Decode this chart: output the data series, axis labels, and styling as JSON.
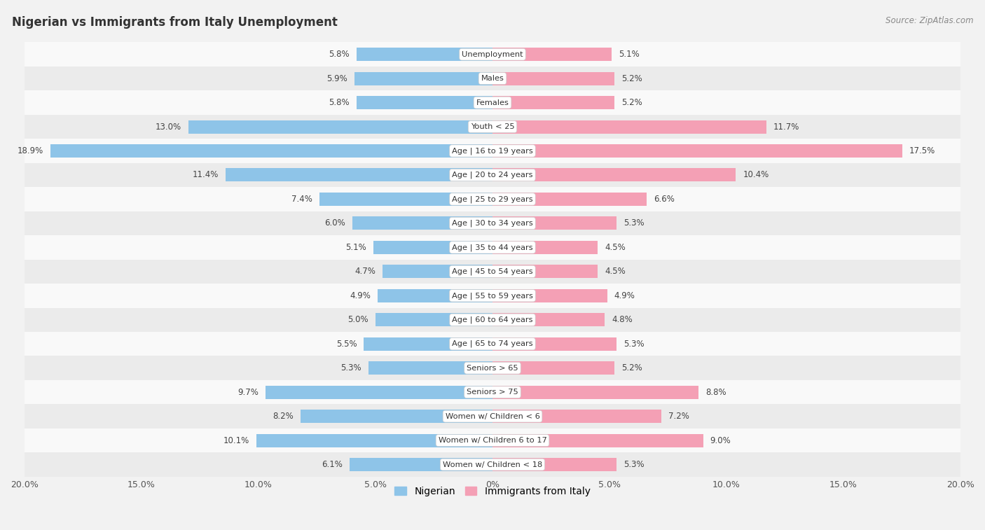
{
  "title": "Nigerian vs Immigrants from Italy Unemployment",
  "source": "Source: ZipAtlas.com",
  "categories": [
    "Unemployment",
    "Males",
    "Females",
    "Youth < 25",
    "Age | 16 to 19 years",
    "Age | 20 to 24 years",
    "Age | 25 to 29 years",
    "Age | 30 to 34 years",
    "Age | 35 to 44 years",
    "Age | 45 to 54 years",
    "Age | 55 to 59 years",
    "Age | 60 to 64 years",
    "Age | 65 to 74 years",
    "Seniors > 65",
    "Seniors > 75",
    "Women w/ Children < 6",
    "Women w/ Children 6 to 17",
    "Women w/ Children < 18"
  ],
  "nigerian": [
    5.8,
    5.9,
    5.8,
    13.0,
    18.9,
    11.4,
    7.4,
    6.0,
    5.1,
    4.7,
    4.9,
    5.0,
    5.5,
    5.3,
    9.7,
    8.2,
    10.1,
    6.1
  ],
  "italy": [
    5.1,
    5.2,
    5.2,
    11.7,
    17.5,
    10.4,
    6.6,
    5.3,
    4.5,
    4.5,
    4.9,
    4.8,
    5.3,
    5.2,
    8.8,
    7.2,
    9.0,
    5.3
  ],
  "nigerian_color": "#8ec4e8",
  "italy_color": "#f4a0b5",
  "background_color": "#f2f2f2",
  "row_bg_odd": "#ebebeb",
  "row_bg_even": "#f9f9f9",
  "xlim": 20.0,
  "bar_height": 0.55,
  "legend_labels": [
    "Nigerian",
    "Immigrants from Italy"
  ],
  "tick_labels": [
    "20.0%",
    "15.0%",
    "10.0%",
    "5.0%",
    "0%",
    "5.0%",
    "10.0%",
    "15.0%",
    "20.0%"
  ],
  "tick_positions": [
    -20,
    -15,
    -10,
    -5,
    0,
    5,
    10,
    15,
    20
  ]
}
